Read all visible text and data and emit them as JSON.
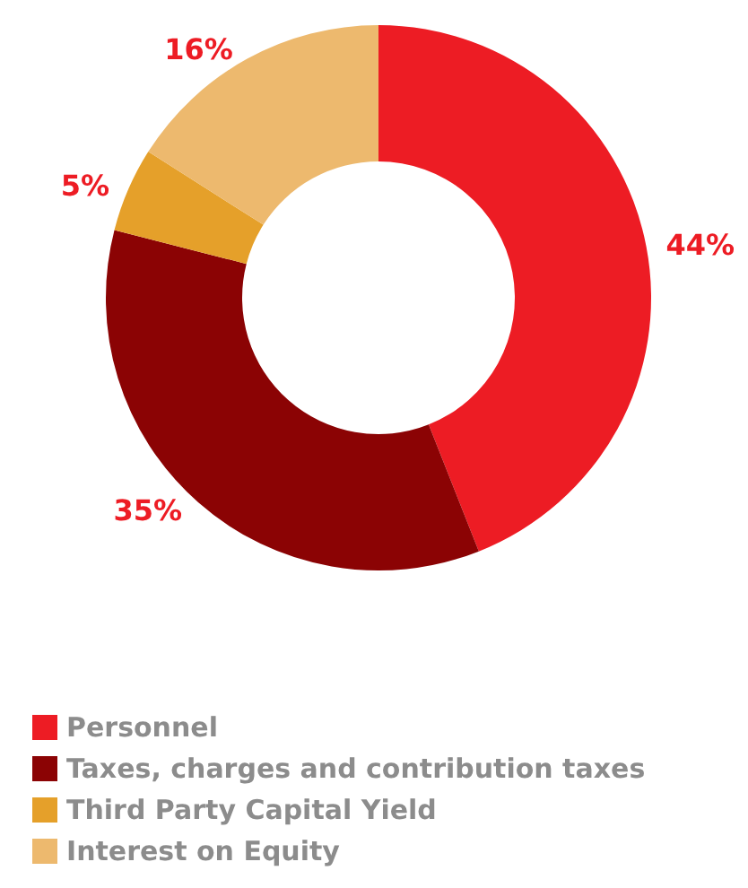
{
  "chart_data": {
    "type": "donut",
    "categories": [
      "Personnel",
      "Taxes, charges and contribution taxes",
      "Third Party Capital Yield",
      "Interest on Equity"
    ],
    "values": [
      44,
      35,
      5,
      16
    ],
    "colors": [
      "#ed1c24",
      "#8b0304",
      "#e5a02a",
      "#edb96e"
    ],
    "value_labels": [
      "44%",
      "35%",
      "5%",
      "16%"
    ],
    "legend": "bottom left"
  }
}
